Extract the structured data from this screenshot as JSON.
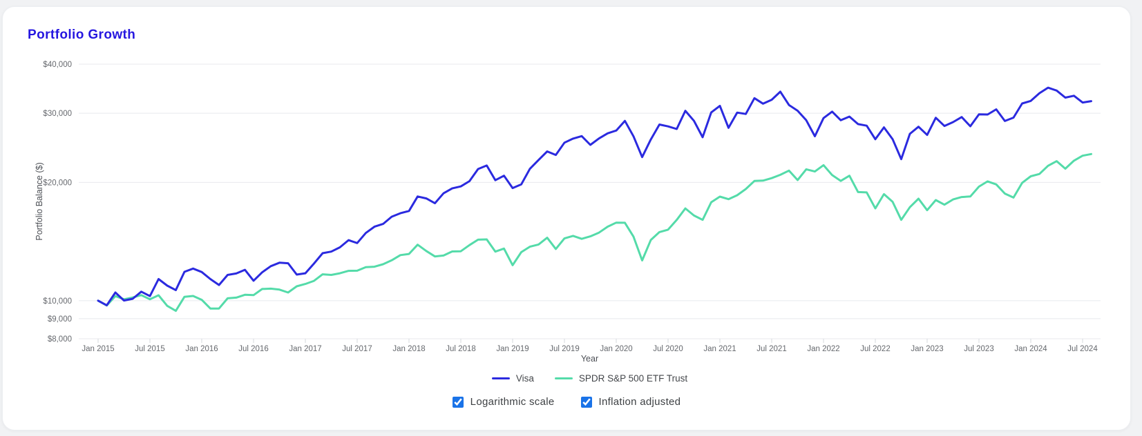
{
  "card": {
    "title": "Portfolio Growth"
  },
  "chart_data": {
    "type": "line",
    "title": "Portfolio Growth",
    "xlabel": "Year",
    "ylabel": "Portfolio Balance ($)",
    "y_scale": "log",
    "ylim": [
      8000,
      40000
    ],
    "x_range": [
      "Jan 2015",
      "Aug 2024"
    ],
    "x_freq": "monthly",
    "grid": true,
    "legend_position": "bottom",
    "y_ticks": [
      40000,
      30000,
      20000,
      10000,
      9000,
      8000
    ],
    "y_tick_labels": [
      "$40,000",
      "$30,000",
      "$20,000",
      "$10,000",
      "$9,000",
      "$8,000"
    ],
    "x_tick_labels": [
      "Jan 2015",
      "Jul 2015",
      "Jan 2016",
      "Jul 2016",
      "Jan 2017",
      "Jul 2017",
      "Jan 2018",
      "Jul 2018",
      "Jan 2019",
      "Jul 2019",
      "Jan 2020",
      "Jul 2020",
      "Jan 2021",
      "Jul 2021",
      "Jan 2022",
      "Jul 2022",
      "Jan 2023",
      "Jul 2023",
      "Jan 2024",
      "Jul 2024"
    ],
    "series": [
      {
        "name": "Visa",
        "color": "#2b2adf",
        "values": [
          10000,
          9730,
          10490,
          10010,
          10110,
          10540,
          10270,
          11350,
          10920,
          10640,
          11840,
          12070,
          11830,
          11350,
          10960,
          11630,
          11730,
          11980,
          11240,
          11810,
          12240,
          12490,
          12450,
          11650,
          11740,
          12430,
          13210,
          13330,
          13670,
          14260,
          14020,
          14870,
          15430,
          15680,
          16360,
          16690,
          16920,
          18420,
          18210,
          17700,
          18760,
          19310,
          19540,
          20150,
          21630,
          22080,
          20260,
          20800,
          19350,
          19770,
          21660,
          22810,
          23980,
          23490,
          25250,
          25860,
          26230,
          24920,
          25880,
          26660,
          27110,
          28690,
          26190,
          23200,
          25720,
          28080,
          27770,
          27350,
          30430,
          28690,
          26070,
          30150,
          31330,
          27540,
          30110,
          29870,
          32770,
          31730,
          32470,
          34040,
          31480,
          30450,
          28790,
          26210,
          29150,
          30290,
          28790,
          29420,
          28150,
          27890,
          25760,
          27620,
          25770,
          22920,
          26590,
          27720,
          26420,
          29210,
          27840,
          28480,
          29330,
          27800,
          29800,
          29770,
          30690,
          28670,
          29240,
          31770,
          32240,
          33740,
          34850,
          34260,
          32870,
          33240,
          31940,
          32200
        ]
      },
      {
        "name": "SPDR S&P 500 ETF Trust",
        "color": "#54dba9",
        "values": [
          10000,
          9720,
          10270,
          10080,
          10190,
          10330,
          10080,
          10320,
          9700,
          9420,
          10230,
          10280,
          10050,
          9550,
          9550,
          10140,
          10180,
          10350,
          10330,
          10710,
          10730,
          10670,
          10490,
          10880,
          11030,
          11230,
          11670,
          11630,
          11740,
          11910,
          11920,
          12170,
          12200,
          12380,
          12670,
          13060,
          13150,
          13880,
          13380,
          12960,
          13030,
          13340,
          13360,
          13850,
          14300,
          14320,
          13330,
          13570,
          12310,
          13290,
          13720,
          13900,
          14460,
          13540,
          14400,
          14620,
          14370,
          14580,
          14900,
          15430,
          15800,
          15790,
          14550,
          12660,
          14270,
          14950,
          15160,
          16050,
          17170,
          16470,
          16060,
          17810,
          18400,
          18130,
          18550,
          19240,
          20170,
          20210,
          20510,
          20910,
          21430,
          20280,
          21600,
          21320,
          22130,
          20880,
          20180,
          20800,
          18900,
          18860,
          17170,
          18670,
          17850,
          16060,
          17300,
          18180,
          16990,
          18030,
          17550,
          18100,
          18360,
          18420,
          19510,
          20120,
          19770,
          18730,
          18300,
          19940,
          20730,
          21010,
          22050,
          22650,
          21680,
          22720,
          23390,
          23620
        ]
      }
    ]
  },
  "controls": {
    "checkboxes": [
      {
        "label": "Logarithmic scale",
        "checked": true
      },
      {
        "label": "Inflation adjusted",
        "checked": true
      }
    ]
  },
  "colors": {
    "title": "#2617e0",
    "page_background": "#f1f2f4",
    "card_background": "#ffffff",
    "grid_line": "#e8e9ed",
    "tick_mark": "#d6d8dd",
    "axis_text": "#65686d",
    "checkbox_accent": "#1a73e8"
  }
}
